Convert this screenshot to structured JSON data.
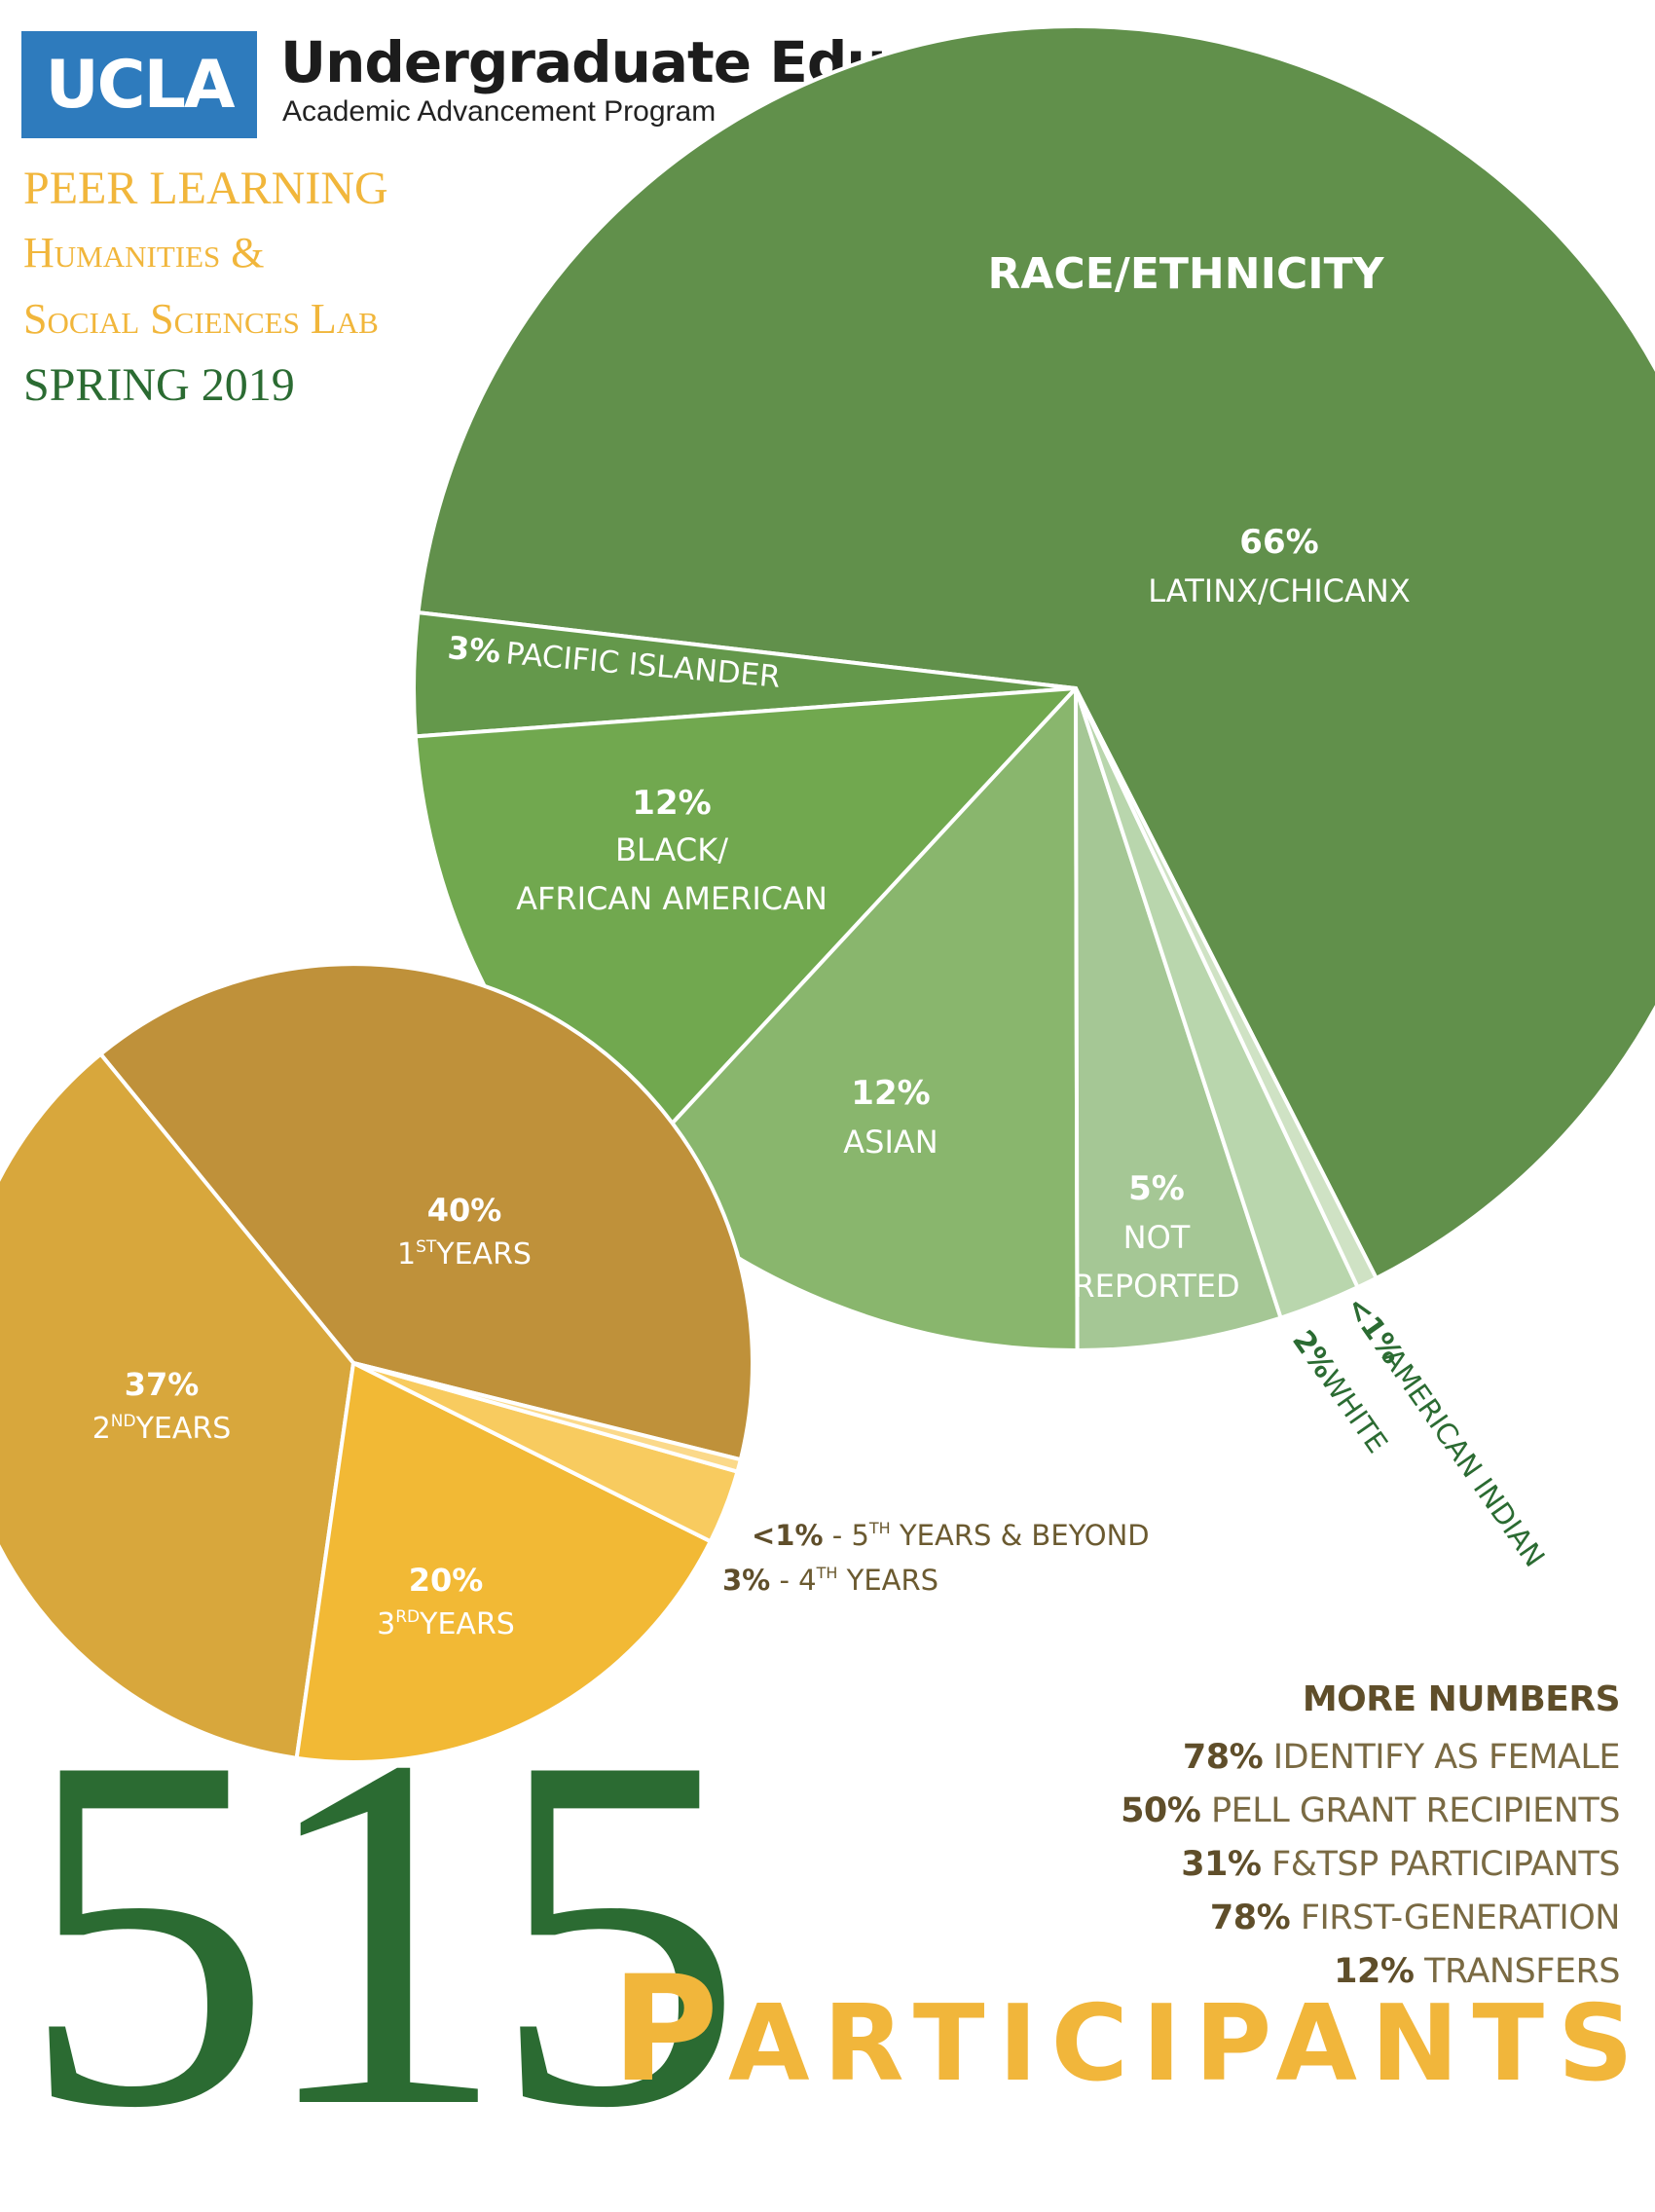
{
  "header": {
    "logo": "UCLA",
    "title": "Undergraduate Education",
    "subtitle": "Academic Advancement Program"
  },
  "program": {
    "line1": "PEER LEARNING",
    "line2": "Humanities &",
    "line3": "Social Sciences Lab",
    "line4": "SPRING 2019"
  },
  "chart_data": [
    {
      "type": "pie",
      "title": "RACE/ETHNICITY",
      "slices": [
        {
          "pct": "66%",
          "value": 66,
          "label": "LATINX/CHICANX",
          "color": "#61904b"
        },
        {
          "pct": "3%",
          "value": 3,
          "label": "PACIFIC ISLANDER",
          "color": "#64984b"
        },
        {
          "pct": "12%",
          "value": 12,
          "label": "BLACK/ AFRICAN AMERICAN",
          "color": "#71a84f"
        },
        {
          "pct": "12%",
          "value": 12,
          "label": "ASIAN",
          "color": "#89b66d"
        },
        {
          "pct": "5%",
          "value": 5,
          "label": "NOT REPORTED",
          "color": "#a5c795"
        },
        {
          "pct": "2%",
          "value": 2,
          "label": "WHITE",
          "color": "#b9d6ad"
        },
        {
          "pct": "<1%",
          "value": 0.5,
          "label": "AMERICAN INDIAN",
          "color": "#cfe2c4"
        }
      ]
    },
    {
      "type": "pie",
      "title": "",
      "slices": [
        {
          "pct": "40%",
          "value": 40,
          "label": "1ST YEARS",
          "color": "#bf913a"
        },
        {
          "pct": "37%",
          "value": 37,
          "label": "2ND YEARS",
          "color": "#d8a73c"
        },
        {
          "pct": "20%",
          "value": 20,
          "label": "3RD YEARS",
          "color": "#f2b935"
        },
        {
          "pct": "3%",
          "value": 3,
          "label": "4TH YEARS",
          "color": "#f8cb5f"
        },
        {
          "pct": "<1%",
          "value": 0.5,
          "label": "5TH YEARS & BEYOND",
          "color": "#fbd98a"
        }
      ]
    }
  ],
  "race_labels": {
    "latinx_pct": "66%",
    "latinx": "LATINX/CHICANX",
    "pacific_pct": "3%",
    "pacific": "PACIFIC ISLANDER",
    "black_pct": "12%",
    "black_1": "BLACK/",
    "black_2": "AFRICAN AMERICAN",
    "asian_pct": "12%",
    "asian": "ASIAN",
    "notrep_pct": "5%",
    "notrep_1": "NOT",
    "notrep_2": "REPORTED",
    "white_pct": "2%",
    "white": "WHITE",
    "amind_pct": "<1%",
    "amind": "AMERICAN INDIAN"
  },
  "year_labels": {
    "y1_pct": "40%",
    "y1_num": "1",
    "y1_sup": "ST",
    "y1_word": "YEARS",
    "y2_pct": "37%",
    "y2_num": "2",
    "y2_sup": "ND",
    "y2_word": "YEARS",
    "y3_pct": "20%",
    "y3_num": "3",
    "y3_sup": "RD",
    "y3_word": "YEARS",
    "y4_pct": "3%",
    "y4_pre": " - 4",
    "y4_sup": "TH",
    "y4_word": " YEARS",
    "y5_pct": "<1%",
    "y5_pre": " - 5",
    "y5_sup": "TH",
    "y5_word": " YEARS & BEYOND"
  },
  "more_numbers": {
    "title": "MORE NUMBERS",
    "items": [
      {
        "pct": "78%",
        "text": "IDENTIFY AS FEMALE"
      },
      {
        "pct": "50%",
        "text": "PELL GRANT RECIPIENTS"
      },
      {
        "pct": "31%",
        "text": "F&TSP PARTICIPANTS"
      },
      {
        "pct": "78%",
        "text": "FIRST-GENERATION"
      },
      {
        "pct": "12%",
        "text": "TRANSFERS"
      }
    ]
  },
  "total": {
    "number": "515",
    "label_first": "P",
    "label_rest": "ARTICIPANTS"
  }
}
